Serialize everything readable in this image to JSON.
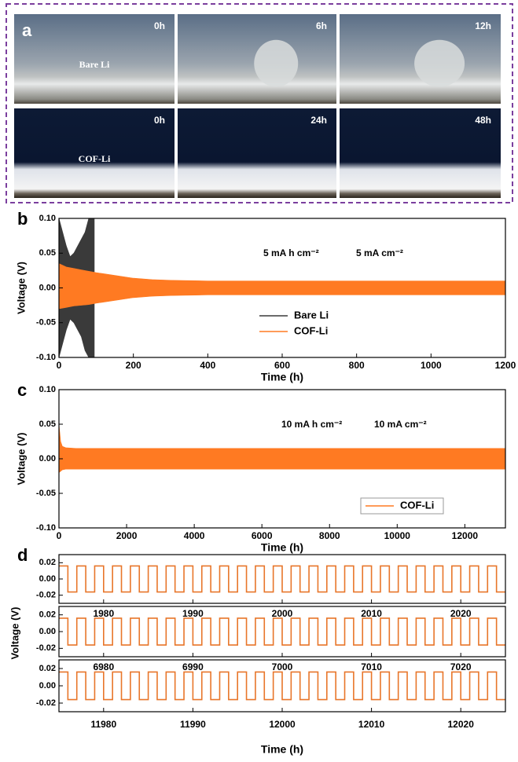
{
  "panel_a": {
    "label": "a",
    "rows": [
      {
        "name": "Bare Li",
        "times": [
          "0h",
          "6h",
          "12h"
        ]
      },
      {
        "name": "COF-Li",
        "times": [
          "0h",
          "24h",
          "48h"
        ]
      }
    ]
  },
  "chart_data": [
    {
      "type": "band",
      "panel": "b",
      "xlabel": "Time (h)",
      "ylabel": "Voltage (V)",
      "annotations": [
        "5 mA h cm⁻²",
        "5 mA cm⁻²"
      ],
      "xlim": [
        0,
        1200
      ],
      "xticks": [
        0,
        200,
        400,
        600,
        800,
        1000,
        1200
      ],
      "ylim": [
        -0.1,
        0.1
      ],
      "yticks": [
        {
          "value": -0.1,
          "label": "-0.10"
        },
        -0.05,
        {
          "value": 0,
          "label": "0.00"
        },
        0.05,
        {
          "value": 0.1,
          "label": "0.10"
        }
      ],
      "legend": "center",
      "series": [
        {
          "name": "Bare Li",
          "color": "#3a3a3a",
          "x": [
            0,
            10,
            20,
            30,
            40,
            50,
            60,
            70,
            80,
            90,
            95
          ],
          "values": [
            0.1,
            0.08,
            0.06,
            0.045,
            0.05,
            0.06,
            0.07,
            0.08,
            0.1,
            0.1,
            0.1
          ],
          "lower": [
            -0.1,
            -0.08,
            -0.06,
            -0.045,
            -0.05,
            -0.06,
            -0.07,
            -0.09,
            -0.1,
            -0.1,
            -0.1
          ]
        },
        {
          "name": "COF-Li",
          "color": "#ff7a22",
          "x": [
            0,
            20,
            40,
            60,
            80,
            100,
            150,
            200,
            250,
            300,
            400,
            600,
            800,
            1000,
            1200
          ],
          "values": [
            0.035,
            0.03,
            0.028,
            0.026,
            0.024,
            0.022,
            0.018,
            0.014,
            0.012,
            0.011,
            0.01,
            0.01,
            0.01,
            0.01,
            0.01
          ],
          "lower": [
            -0.03,
            -0.028,
            -0.026,
            -0.025,
            -0.024,
            -0.022,
            -0.018,
            -0.014,
            -0.012,
            -0.011,
            -0.01,
            -0.01,
            -0.01,
            -0.01,
            -0.01
          ]
        }
      ]
    },
    {
      "type": "band",
      "panel": "c",
      "xlabel": "Time (h)",
      "ylabel": "Voltage (V)",
      "annotations": [
        "10 mA h cm⁻²",
        "10 mA cm⁻²"
      ],
      "xlim": [
        0,
        13200
      ],
      "xticks": [
        0,
        2000,
        4000,
        6000,
        8000,
        10000,
        12000
      ],
      "ylim": [
        -0.1,
        0.1
      ],
      "yticks": [
        {
          "value": -0.1,
          "label": "-0.10"
        },
        -0.05,
        {
          "value": 0,
          "label": "0.00"
        },
        0.05,
        {
          "value": 0.1,
          "label": "0.10"
        }
      ],
      "legend": "lower right",
      "series": [
        {
          "name": "COF-Li",
          "color": "#ff7a22",
          "x": [
            0,
            50,
            100,
            200,
            500,
            13200
          ],
          "values": [
            0.05,
            0.025,
            0.018,
            0.016,
            0.015,
            0.015
          ],
          "lower": [
            -0.02,
            -0.018,
            -0.016,
            -0.015,
            -0.015,
            -0.015
          ]
        }
      ]
    },
    {
      "type": "square-wave",
      "panel": "d",
      "xlabel": "Time (h)",
      "ylabel": "Voltage (V)",
      "color": "#e8762a",
      "panels": [
        {
          "xlim": [
            1975,
            2025
          ],
          "xticks": [
            1980,
            1990,
            2000,
            2010,
            2020
          ],
          "ylim": [
            -0.03,
            0.03
          ],
          "yticks": [
            -0.02,
            {
              "value": 0,
              "label": "0.00"
            },
            0.02
          ],
          "values": [
            0.016,
            -0.016
          ],
          "period": 2
        },
        {
          "xlim": [
            6975,
            7025
          ],
          "xticks": [
            6980,
            6990,
            7000,
            7010,
            7020
          ],
          "ylim": [
            -0.03,
            0.03
          ],
          "yticks": [
            -0.02,
            {
              "value": 0,
              "label": "0.00"
            },
            0.02
          ],
          "values": [
            0.016,
            -0.016
          ],
          "period": 2
        },
        {
          "xlim": [
            11975,
            12025
          ],
          "xticks": [
            11980,
            11990,
            12000,
            12010,
            12020
          ],
          "ylim": [
            -0.03,
            0.03
          ],
          "yticks": [
            -0.02,
            {
              "value": 0,
              "label": "0.00"
            },
            0.02
          ],
          "values": [
            0.016,
            -0.016
          ],
          "period": 2
        }
      ]
    }
  ]
}
